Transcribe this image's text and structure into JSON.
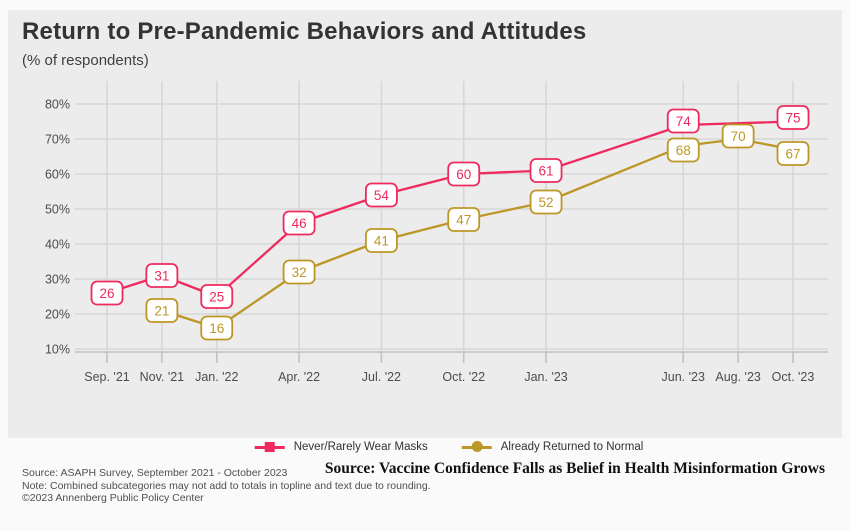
{
  "header": {
    "title": "Return to Pre-Pandemic Behaviors and Attitudes",
    "subtitle": "(% of respondents)"
  },
  "chart_data": {
    "type": "line",
    "title": "Return to Pre-Pandemic Behaviors and Attitudes",
    "subtitle": "(% of respondents)",
    "grid": true,
    "legend_position": "bottom",
    "ylim": [
      10,
      80
    ],
    "y_tick_step": 10,
    "y_tick_suffix": "%",
    "x_range_months": [
      0,
      25
    ],
    "x_ticks": [
      {
        "label": "Sep. '21",
        "month": 0
      },
      {
        "label": "Nov. '21",
        "month": 2
      },
      {
        "label": "Jan. '22",
        "month": 4
      },
      {
        "label": "Apr. '22",
        "month": 7
      },
      {
        "label": "Jul. '22",
        "month": 10
      },
      {
        "label": "Oct. '22",
        "month": 13
      },
      {
        "label": "Jan. '23",
        "month": 16
      },
      {
        "label": "Jun. '23",
        "month": 21
      },
      {
        "label": "Aug. '23",
        "month": 23
      },
      {
        "label": "Oct. '23",
        "month": 25
      }
    ],
    "series": [
      {
        "name": "Never/Rarely Wear Masks",
        "color": "#ee2a5e",
        "marker": "square",
        "points": [
          {
            "label": "Sep. '21",
            "month": 0,
            "value": 26
          },
          {
            "label": "Nov. '21",
            "month": 2,
            "value": 31
          },
          {
            "label": "Jan. '22",
            "month": 4,
            "value": 25
          },
          {
            "label": "Apr. '22",
            "month": 7,
            "value": 46
          },
          {
            "label": "Jul. '22",
            "month": 10,
            "value": 54
          },
          {
            "label": "Oct. '22",
            "month": 13,
            "value": 60
          },
          {
            "label": "Jan. '23",
            "month": 16,
            "value": 61
          },
          {
            "label": "Jun. '23",
            "month": 21,
            "value": 74
          },
          {
            "label": "Oct. '23",
            "month": 25,
            "value": 75
          }
        ]
      },
      {
        "name": "Already Returned to Normal",
        "color": "#bd9726",
        "marker": "circle",
        "points": [
          {
            "label": "Nov. '21",
            "month": 2,
            "value": 21
          },
          {
            "label": "Jan. '22",
            "month": 4,
            "value": 16
          },
          {
            "label": "Apr. '22",
            "month": 7,
            "value": 32
          },
          {
            "label": "Jul. '22",
            "month": 10,
            "value": 41
          },
          {
            "label": "Oct. '22",
            "month": 13,
            "value": 47
          },
          {
            "label": "Jan. '23",
            "month": 16,
            "value": 52
          },
          {
            "label": "Jun. '23",
            "month": 21,
            "value": 68
          },
          {
            "label": "Aug. '23",
            "month": 23,
            "value": 70
          },
          {
            "label": "Oct. '23",
            "month": 25,
            "value": 67
          }
        ]
      }
    ]
  },
  "footer": {
    "source_line": "Source: ASAPH Survey, September 2021 - October 2023",
    "note_line": "Note: Combined subcategories may not add to totals in topline and text due to rounding.",
    "copyright_line": "©2023 Annenberg Public Policy Center",
    "headline": "Source: Vaccine Confidence Falls as Belief in Health Misinformation Grows"
  }
}
